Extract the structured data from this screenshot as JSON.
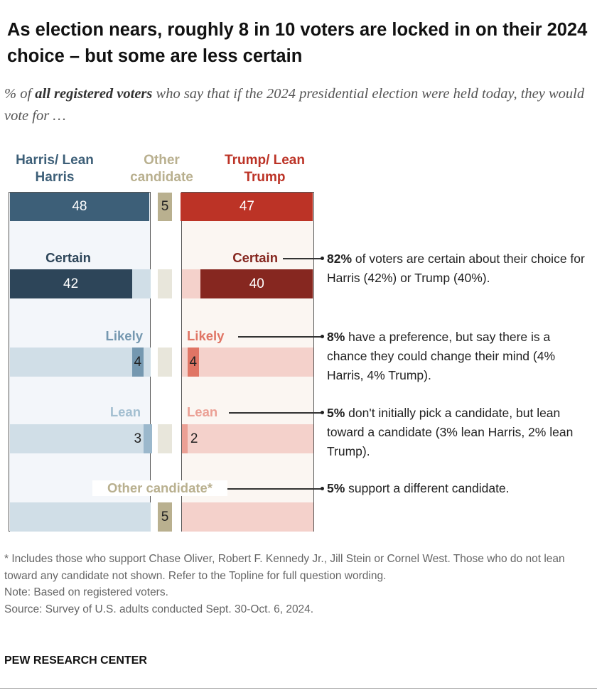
{
  "title": "As election nears, roughly 8 in 10 voters are locked in on their 2024 choice – but some are less certain",
  "subtitle": {
    "pre": "% of ",
    "bold": "all registered voters",
    "post": " who say that if the 2024 presidential election were held today, they would vote for …"
  },
  "chart_data": {
    "type": "bar",
    "columns": [
      {
        "key": "harris",
        "label": "Harris/ Lean Harris",
        "color": "#3d5f78"
      },
      {
        "key": "other",
        "label": "Other candidate",
        "color": "#b9b08f"
      },
      {
        "key": "trump",
        "label": "Trump/ Lean Trump",
        "color": "#bc3326"
      }
    ],
    "totals": {
      "harris": 48,
      "other": 5,
      "trump": 47
    },
    "rows": [
      {
        "label": "Certain",
        "harris": 42,
        "trump": 40,
        "harris_color": "#2d4559",
        "trump_color": "#862720",
        "harris_label_color": "#2d4559",
        "trump_label_color": "#862720"
      },
      {
        "label": "Likely",
        "harris": 4,
        "trump": 4,
        "harris_color": "#7598b0",
        "trump_color": "#e07565",
        "harris_label_color": "#7598b0",
        "trump_label_color": "#e07565"
      },
      {
        "label": "Lean",
        "harris": 3,
        "trump": 2,
        "harris_color": "#9bb8cc",
        "trump_color": "#eba095",
        "harris_label_color": "#a3bfd1",
        "trump_label_color": "#eba095"
      },
      {
        "label": "Other candidate*",
        "other": 5,
        "label_color": "#b9b08f"
      }
    ],
    "colors": {
      "harris_bg": "#f3f6fa",
      "harris_row": "#d0dee7",
      "trump_bg": "#fbf6f2",
      "trump_row": "#f4d1cb",
      "other_row": "#e8e6db"
    }
  },
  "annotations": [
    {
      "bold": "82%",
      "text": " of voters are certain about their choice for Harris (42%) or Trump (40%)."
    },
    {
      "bold": "8%",
      "text": " have a preference, but say there is a chance they could change their mind (4% Harris, 4% Trump)."
    },
    {
      "bold": "5%",
      "text": " don't initially pick a candidate, but lean toward a candidate (3% lean Harris, 2% lean Trump)."
    },
    {
      "bold": "5%",
      "text": " support a different candidate."
    }
  ],
  "notes": [
    "* Includes those who support Chase Oliver, Robert F. Kennedy Jr., Jill Stein or Cornel West. Those who do not lean toward any candidate not shown. Refer to the Topline for full question wording.",
    "Note: Based on registered voters.",
    "Source: Survey of U.S. adults conducted Sept. 30-Oct. 6, 2024."
  ],
  "brand": "PEW RESEARCH CENTER"
}
